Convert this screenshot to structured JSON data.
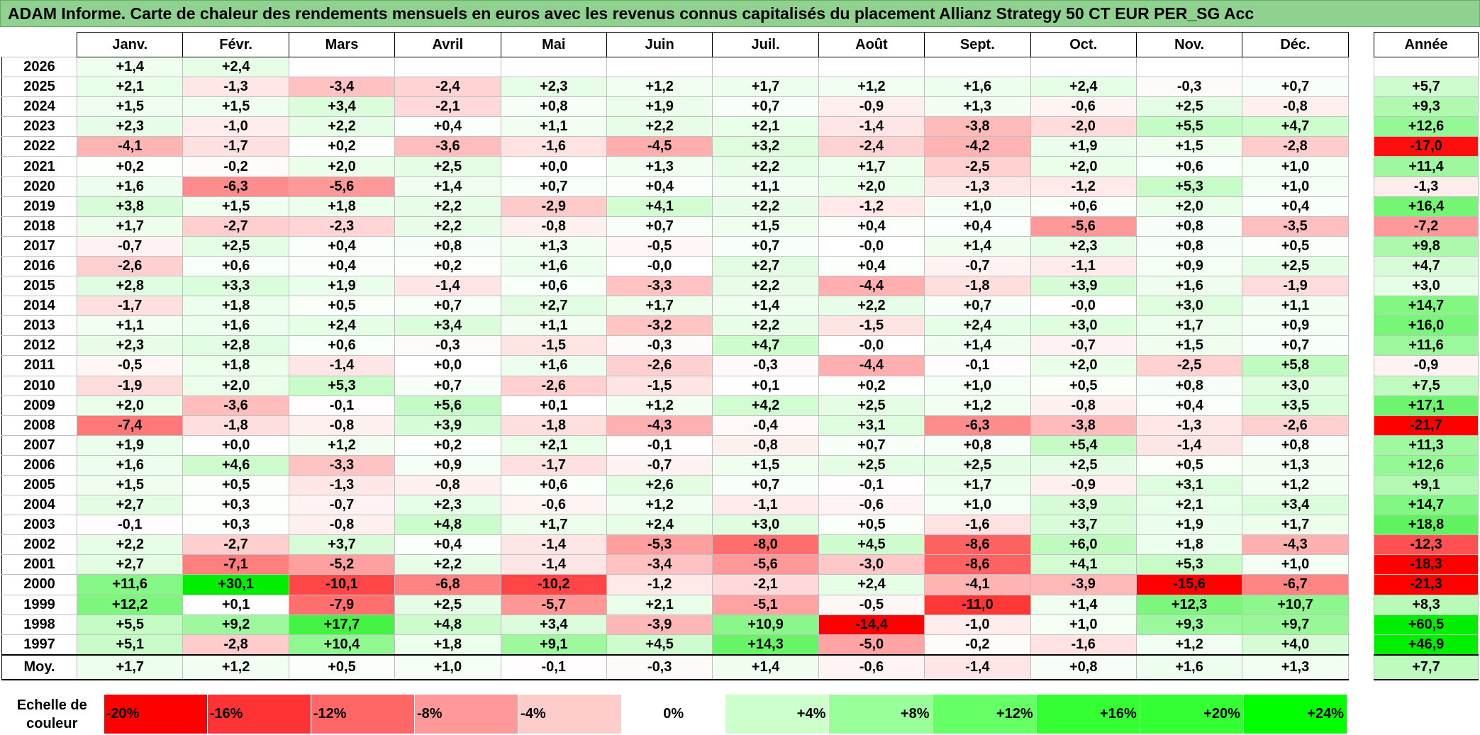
{
  "title": "ADAM Informe. Carte de chaleur des rendements mensuels en euros avec les revenus connus capitalisés du placement Allianz Strategy 50 CT EUR PER_SG Acc",
  "year_header": "Année",
  "average_label": "Moy.",
  "scale_label_line1": "Echelle de",
  "scale_label_line2": "couleur",
  "scale": [
    "-20%",
    "-16%",
    "-12%",
    "-8%",
    "-4%",
    "0%",
    "+4%",
    "+8%",
    "+12%",
    "+16%",
    "+20%",
    "+24%"
  ],
  "colors": {
    "title_bg": "#8fd18f",
    "scale_bg": [
      "#ff0000",
      "#ff3333",
      "#ff6666",
      "#ff9999",
      "#ffcccc",
      "#ffffff",
      "#ccffcc",
      "#99ff99",
      "#66ff66",
      "#33ff33",
      "#33ff33",
      "#00ff00"
    ]
  },
  "chart_data": {
    "type": "heatmap",
    "title": "ADAM Informe. Carte de chaleur des rendements mensuels en euros avec les revenus connus capitalisés du placement Allianz Strategy 50 CT EUR PER_SG Acc",
    "columns": [
      "Janv.",
      "Févr.",
      "Mars",
      "Avril",
      "Mai",
      "Juin",
      "Juil.",
      "Août",
      "Sept.",
      "Oct.",
      "Nov.",
      "Déc."
    ],
    "rows": [
      {
        "year": "2026",
        "values": [
          "+1,4",
          "+2,4",
          "",
          "",
          "",
          "",
          "",
          "",
          "",
          "",
          "",
          ""
        ],
        "annual": ""
      },
      {
        "year": "2025",
        "values": [
          "+2,1",
          "-1,3",
          "-3,4",
          "-2,4",
          "+2,3",
          "+1,2",
          "+1,7",
          "+1,2",
          "+1,6",
          "+2,4",
          "-0,3",
          "+0,7"
        ],
        "annual": "+5,7"
      },
      {
        "year": "2024",
        "values": [
          "+1,5",
          "+1,5",
          "+3,4",
          "-2,1",
          "+0,8",
          "+1,9",
          "+0,7",
          "-0,9",
          "+1,3",
          "-0,6",
          "+2,5",
          "-0,8"
        ],
        "annual": "+9,3"
      },
      {
        "year": "2023",
        "values": [
          "+2,3",
          "-1,0",
          "+2,2",
          "+0,4",
          "+1,1",
          "+2,2",
          "+2,1",
          "-1,4",
          "-3,8",
          "-2,0",
          "+5,5",
          "+4,7"
        ],
        "annual": "+12,6"
      },
      {
        "year": "2022",
        "values": [
          "-4,1",
          "-1,7",
          "+0,2",
          "-3,6",
          "-1,6",
          "-4,5",
          "+3,2",
          "-2,4",
          "-4,2",
          "+1,9",
          "+1,5",
          "-2,8"
        ],
        "annual": "-17,0"
      },
      {
        "year": "2021",
        "values": [
          "+0,2",
          "-0,2",
          "+2,0",
          "+2,5",
          "+0,0",
          "+1,3",
          "+2,2",
          "+1,7",
          "-2,5",
          "+2,0",
          "+0,6",
          "+1,0"
        ],
        "annual": "+11,4"
      },
      {
        "year": "2020",
        "values": [
          "+1,6",
          "-6,3",
          "-5,6",
          "+1,4",
          "+0,7",
          "+0,4",
          "+1,1",
          "+2,0",
          "-1,3",
          "-1,2",
          "+5,3",
          "+1,0"
        ],
        "annual": "-1,3"
      },
      {
        "year": "2019",
        "values": [
          "+3,8",
          "+1,5",
          "+1,8",
          "+2,2",
          "-2,9",
          "+4,1",
          "+2,2",
          "-1,2",
          "+1,0",
          "+0,6",
          "+2,0",
          "+0,4"
        ],
        "annual": "+16,4"
      },
      {
        "year": "2018",
        "values": [
          "+1,7",
          "-2,7",
          "-2,3",
          "+2,2",
          "-0,8",
          "+0,7",
          "+1,5",
          "+0,4",
          "+0,4",
          "-5,6",
          "+0,8",
          "-3,5"
        ],
        "annual": "-7,2"
      },
      {
        "year": "2017",
        "values": [
          "-0,7",
          "+2,5",
          "+0,4",
          "+0,8",
          "+1,3",
          "-0,5",
          "+0,7",
          "-0,0",
          "+1,4",
          "+2,3",
          "+0,8",
          "+0,5"
        ],
        "annual": "+9,8"
      },
      {
        "year": "2016",
        "values": [
          "-2,6",
          "+0,6",
          "+0,4",
          "+0,2",
          "+1,6",
          "-0,0",
          "+2,7",
          "+0,4",
          "-0,7",
          "-1,1",
          "+0,9",
          "+2,5"
        ],
        "annual": "+4,7"
      },
      {
        "year": "2015",
        "values": [
          "+2,8",
          "+3,3",
          "+1,9",
          "-1,4",
          "+0,6",
          "-3,3",
          "+2,2",
          "-4,4",
          "-1,8",
          "+3,9",
          "+1,6",
          "-1,9"
        ],
        "annual": "+3,0"
      },
      {
        "year": "2014",
        "values": [
          "-1,7",
          "+1,8",
          "+0,5",
          "+0,7",
          "+2,7",
          "+1,7",
          "+1,4",
          "+2,2",
          "+0,7",
          "-0,0",
          "+3,0",
          "+1,1"
        ],
        "annual": "+14,7"
      },
      {
        "year": "2013",
        "values": [
          "+1,1",
          "+1,6",
          "+2,4",
          "+3,4",
          "+1,1",
          "-3,2",
          "+2,2",
          "-1,5",
          "+2,4",
          "+3,0",
          "+1,7",
          "+0,9"
        ],
        "annual": "+16,0"
      },
      {
        "year": "2012",
        "values": [
          "+2,3",
          "+2,8",
          "+0,6",
          "-0,3",
          "-1,5",
          "-0,3",
          "+4,7",
          "-0,0",
          "+1,4",
          "-0,7",
          "+1,5",
          "+0,7"
        ],
        "annual": "+11,6"
      },
      {
        "year": "2011",
        "values": [
          "-0,5",
          "+1,8",
          "-1,4",
          "+0,0",
          "+1,6",
          "-2,6",
          "-0,3",
          "-4,4",
          "-0,1",
          "+2,0",
          "-2,5",
          "+5,8"
        ],
        "annual": "-0,9"
      },
      {
        "year": "2010",
        "values": [
          "-1,9",
          "+2,0",
          "+5,3",
          "+0,7",
          "-2,6",
          "-1,5",
          "+0,1",
          "+0,2",
          "+1,0",
          "+0,5",
          "+0,8",
          "+3,0"
        ],
        "annual": "+7,5"
      },
      {
        "year": "2009",
        "values": [
          "+2,0",
          "-3,6",
          "-0,1",
          "+5,6",
          "+0,1",
          "+1,2",
          "+4,2",
          "+2,5",
          "+1,2",
          "-0,8",
          "+0,4",
          "+3,5"
        ],
        "annual": "+17,1"
      },
      {
        "year": "2008",
        "values": [
          "-7,4",
          "-1,8",
          "-0,8",
          "+3,9",
          "-1,8",
          "-4,3",
          "-0,4",
          "+3,1",
          "-6,3",
          "-3,8",
          "-1,3",
          "-2,6"
        ],
        "annual": "-21,7"
      },
      {
        "year": "2007",
        "values": [
          "+1,9",
          "+0,0",
          "+1,2",
          "+0,2",
          "+2,1",
          "-0,1",
          "-0,8",
          "+0,7",
          "+0,8",
          "+5,4",
          "-1,4",
          "+0,8"
        ],
        "annual": "+11,3"
      },
      {
        "year": "2006",
        "values": [
          "+1,6",
          "+4,6",
          "-3,3",
          "+0,9",
          "-1,7",
          "-0,7",
          "+1,5",
          "+2,5",
          "+2,5",
          "+2,5",
          "+0,5",
          "+1,3"
        ],
        "annual": "+12,6"
      },
      {
        "year": "2005",
        "values": [
          "+1,5",
          "+0,5",
          "-1,3",
          "-0,8",
          "+0,6",
          "+2,6",
          "+0,7",
          "-0,1",
          "+1,7",
          "-0,9",
          "+3,1",
          "+1,2"
        ],
        "annual": "+9,1"
      },
      {
        "year": "2004",
        "values": [
          "+2,7",
          "+0,3",
          "-0,7",
          "+2,3",
          "-0,6",
          "+1,2",
          "-1,1",
          "-0,6",
          "+1,0",
          "+3,9",
          "+2,1",
          "+3,4"
        ],
        "annual": "+14,7"
      },
      {
        "year": "2003",
        "values": [
          "-0,1",
          "+0,3",
          "-0,8",
          "+4,8",
          "+1,7",
          "+2,4",
          "+3,0",
          "+0,5",
          "-1,6",
          "+3,7",
          "+1,9",
          "+1,7"
        ],
        "annual": "+18,8"
      },
      {
        "year": "2002",
        "values": [
          "+2,2",
          "-2,7",
          "+3,7",
          "+0,4",
          "-1,4",
          "-5,3",
          "-8,0",
          "+4,5",
          "-8,6",
          "+6,0",
          "+1,8",
          "-4,3"
        ],
        "annual": "-12,3"
      },
      {
        "year": "2001",
        "values": [
          "+2,7",
          "-7,1",
          "-5,2",
          "+2,2",
          "-1,4",
          "-3,4",
          "-5,6",
          "-3,0",
          "-8,6",
          "+4,1",
          "+5,3",
          "+1,0"
        ],
        "annual": "-18,3"
      },
      {
        "year": "2000",
        "values": [
          "+11,6",
          "+30,1",
          "-10,1",
          "-6,8",
          "-10,2",
          "-1,2",
          "-2,1",
          "+2,4",
          "-4,1",
          "-3,9",
          "-15,6",
          "-6,7"
        ],
        "annual": "-21,3"
      },
      {
        "year": "1999",
        "values": [
          "+12,2",
          "+0,1",
          "-7,9",
          "+2,5",
          "-5,7",
          "+2,1",
          "-5,1",
          "-0,5",
          "-11,0",
          "+1,4",
          "+12,3",
          "+10,7"
        ],
        "annual": "+8,3"
      },
      {
        "year": "1998",
        "values": [
          "+5,5",
          "+9,2",
          "+17,7",
          "+4,8",
          "+3,4",
          "-3,9",
          "+10,9",
          "-14,4",
          "-1,0",
          "+1,0",
          "+9,3",
          "+9,7"
        ],
        "annual": "+60,5"
      },
      {
        "year": "1997",
        "values": [
          "+5,1",
          "-2,8",
          "+10,4",
          "+1,8",
          "+9,1",
          "+4,5",
          "+14,3",
          "-5,0",
          "-0,2",
          "-1,6",
          "+1,2",
          "+4,0"
        ],
        "annual": "+46,9"
      }
    ],
    "averages": [
      "+1,7",
      "+1,2",
      "+0,5",
      "+1,0",
      "-0,1",
      "-0,3",
      "+1,4",
      "-0,6",
      "-1,4",
      "+0,8",
      "+1,6",
      "+1,3"
    ],
    "average_annual": "+7,7"
  }
}
